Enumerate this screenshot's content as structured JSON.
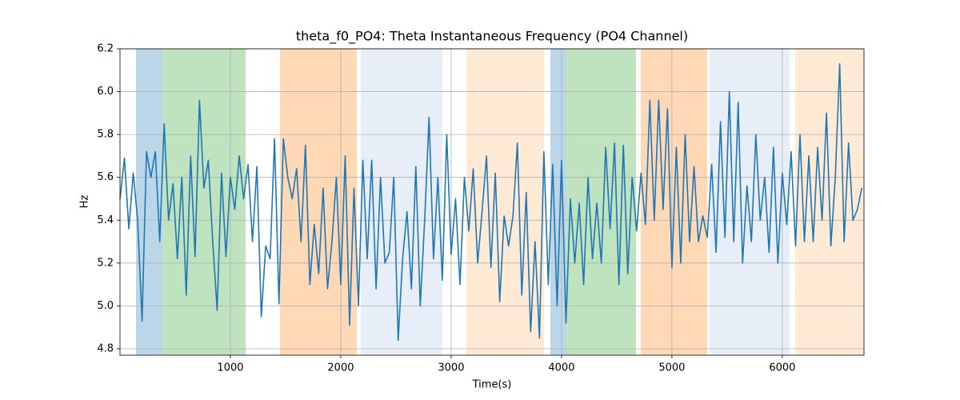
{
  "chart_data": {
    "type": "line",
    "title": "theta_f0_PO4: Theta Instantaneous Frequency (PO4 Channel)",
    "x_label": "Time(s)",
    "y_label": "Hz",
    "xlim": [
      0,
      6740
    ],
    "ylim": [
      4.77,
      6.2
    ],
    "xticks": [
      1000,
      2000,
      3000,
      4000,
      5000,
      6000
    ],
    "yticks": [
      4.8,
      {
        "value": 5,
        "label": "5.0"
      },
      5.2,
      5.4,
      5.6,
      5.8,
      {
        "value": 6,
        "label": "6.0"
      },
      6.2
    ],
    "grid": true,
    "spans": [
      {
        "start": 145,
        "end": 384,
        "color": "#1f77b4",
        "opacity": 0.3
      },
      {
        "start": 384,
        "end": 1138,
        "color": "#2ca02c",
        "opacity": 0.3
      },
      {
        "start": 1449,
        "end": 2145,
        "color": "#ff7f0e",
        "opacity": 0.3
      },
      {
        "start": 2181,
        "end": 2920,
        "color": "#aec7e8",
        "opacity": 0.3
      },
      {
        "start": 3138,
        "end": 3841,
        "color": "#ffbb78",
        "opacity": 0.3
      },
      {
        "start": 3899,
        "end": 4043,
        "color": "#1f77b4",
        "opacity": 0.3
      },
      {
        "start": 4043,
        "end": 4674,
        "color": "#2ca02c",
        "opacity": 0.3
      },
      {
        "start": 4717,
        "end": 5319,
        "color": "#ff7f0e",
        "opacity": 0.3
      },
      {
        "start": 5341,
        "end": 6065,
        "color": "#aec7e8",
        "opacity": 0.3
      },
      {
        "start": 6116,
        "end": 6740,
        "color": "#ffbb78",
        "opacity": 0.3
      }
    ],
    "x": [
      0,
      40,
      80,
      120,
      160,
      200,
      240,
      280,
      320,
      360,
      400,
      440,
      480,
      520,
      560,
      600,
      640,
      680,
      720,
      760,
      800,
      840,
      880,
      920,
      960,
      1000,
      1040,
      1080,
      1120,
      1160,
      1200,
      1240,
      1280,
      1320,
      1360,
      1400,
      1440,
      1480,
      1520,
      1560,
      1600,
      1640,
      1680,
      1720,
      1760,
      1800,
      1840,
      1880,
      1920,
      1960,
      2000,
      2040,
      2080,
      2120,
      2160,
      2200,
      2240,
      2280,
      2320,
      2360,
      2400,
      2440,
      2480,
      2520,
      2560,
      2600,
      2640,
      2680,
      2720,
      2760,
      2800,
      2840,
      2880,
      2920,
      2960,
      3000,
      3040,
      3080,
      3120,
      3160,
      3200,
      3240,
      3280,
      3320,
      3360,
      3400,
      3440,
      3480,
      3520,
      3560,
      3600,
      3640,
      3680,
      3720,
      3760,
      3800,
      3840,
      3880,
      3920,
      3960,
      4000,
      4040,
      4080,
      4120,
      4160,
      4200,
      4240,
      4280,
      4320,
      4360,
      4400,
      4440,
      4480,
      4520,
      4560,
      4600,
      4640,
      4680,
      4720,
      4760,
      4800,
      4840,
      4880,
      4920,
      4960,
      5000,
      5040,
      5080,
      5120,
      5160,
      5200,
      5240,
      5280,
      5320,
      5360,
      5400,
      5440,
      5480,
      5520,
      5560,
      5600,
      5640,
      5680,
      5720,
      5760,
      5800,
      5840,
      5880,
      5920,
      5960,
      6000,
      6040,
      6080,
      6120,
      6160,
      6200,
      6240,
      6280,
      6320,
      6360,
      6400,
      6440,
      6480,
      6520,
      6560,
      6600,
      6640,
      6680,
      6720
    ],
    "series": [
      {
        "color": "#1f77b4",
        "values": [
          5.5,
          5.69,
          5.36,
          5.62,
          5.4,
          4.93,
          5.72,
          5.6,
          5.72,
          5.3,
          5.85,
          5.4,
          5.57,
          5.22,
          5.6,
          5.05,
          5.7,
          5.23,
          5.96,
          5.55,
          5.68,
          5.3,
          4.98,
          5.62,
          5.23,
          5.6,
          5.45,
          5.7,
          5.5,
          5.66,
          5.3,
          5.65,
          4.95,
          5.28,
          5.22,
          5.78,
          5.01,
          5.78,
          5.6,
          5.5,
          5.64,
          5.3,
          5.75,
          5.1,
          5.38,
          5.15,
          5.55,
          5.08,
          5.3,
          5.6,
          5.1,
          5.7,
          4.91,
          5.55,
          5.0,
          5.68,
          5.22,
          5.68,
          5.08,
          5.6,
          5.2,
          5.25,
          5.6,
          4.84,
          5.22,
          5.44,
          5.08,
          5.65,
          5.0,
          5.4,
          5.88,
          5.22,
          5.6,
          5.12,
          5.8,
          5.24,
          5.5,
          5.1,
          5.6,
          5.35,
          5.64,
          5.2,
          5.44,
          5.7,
          5.18,
          5.62,
          5.02,
          5.42,
          5.28,
          5.42,
          5.76,
          5.05,
          5.53,
          4.88,
          5.3,
          4.85,
          5.72,
          5.1,
          5.66,
          5.0,
          5.68,
          4.92,
          5.5,
          5.2,
          5.48,
          5.1,
          5.6,
          5.22,
          5.48,
          5.2,
          5.74,
          5.36,
          5.76,
          5.1,
          5.75,
          5.15,
          5.6,
          5.35,
          5.62,
          5.38,
          5.96,
          5.4,
          5.96,
          5.45,
          5.92,
          5.18,
          5.74,
          5.2,
          5.8,
          5.3,
          5.65,
          5.3,
          5.42,
          5.32,
          5.66,
          5.25,
          5.86,
          5.32,
          6.0,
          5.3,
          5.95,
          5.2,
          5.56,
          5.3,
          5.8,
          5.4,
          5.6,
          5.25,
          5.74,
          5.2,
          5.62,
          5.38,
          5.72,
          5.28,
          5.8,
          5.3,
          5.7,
          5.3,
          5.74,
          5.4,
          5.9,
          5.28,
          5.6,
          6.13,
          5.3,
          5.76,
          5.4,
          5.45,
          5.55
        ]
      }
    ]
  }
}
